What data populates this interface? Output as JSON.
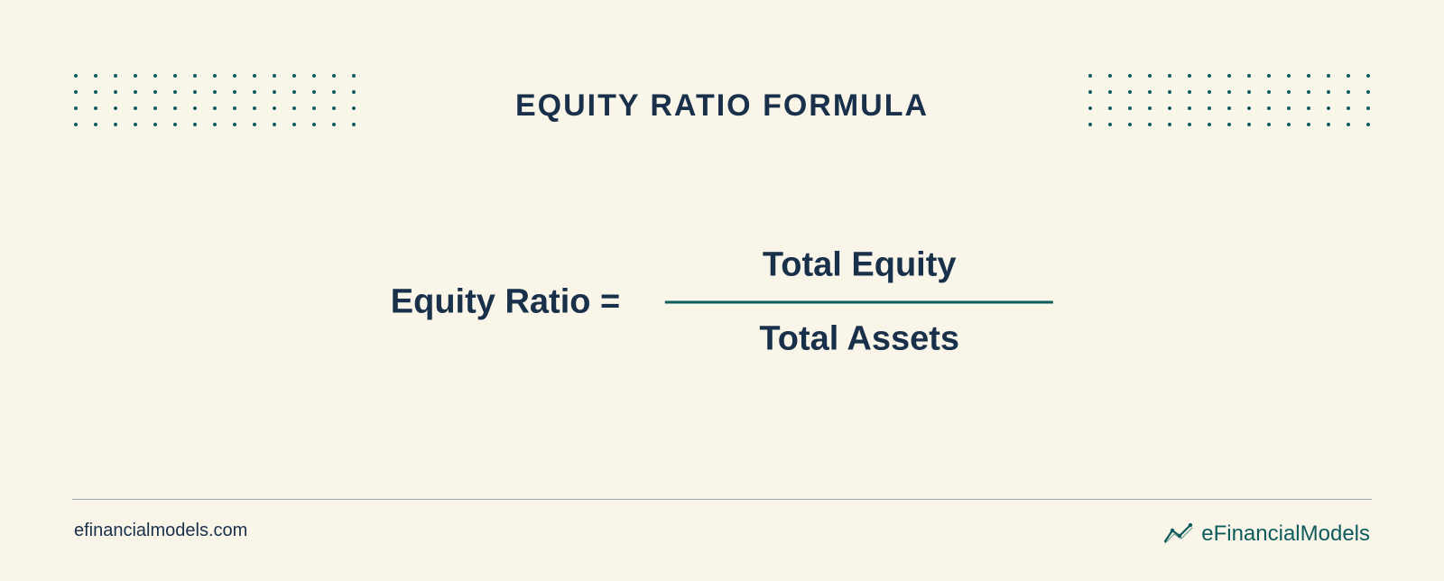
{
  "infographic": {
    "type": "formula-infographic",
    "background_color": "#faf5e9",
    "text_color": "#19304a",
    "accent_color": "#0d5c5c",
    "title": {
      "text": "EQUITY RATIO FORMULA",
      "font_size": 34,
      "font_weight": 800,
      "letter_spacing": 2,
      "color": "#19304a"
    },
    "dot_grid": {
      "rows": 4,
      "cols": 15,
      "dot_color": "#0d5c5c",
      "dot_size": 4,
      "row_gap": 14,
      "col_gap": 18
    },
    "formula": {
      "label": "Equity Ratio =",
      "numerator": "Total Equity",
      "denominator": "Total Assets",
      "font_size": 38,
      "font_weight": 600,
      "text_color": "#19304a",
      "line_color": "#0d5c5c",
      "line_width": 430,
      "line_thickness": 3
    },
    "footer": {
      "divider_color": "#9aa8b0",
      "url": "efinancialmodels.com",
      "url_font_size": 20,
      "url_color": "#19304a",
      "logo": {
        "prefix": "e",
        "main": "FinancialModels",
        "font_size": 24,
        "color": "#0d5c5c",
        "icon_color": "#0d5c5c"
      }
    }
  }
}
